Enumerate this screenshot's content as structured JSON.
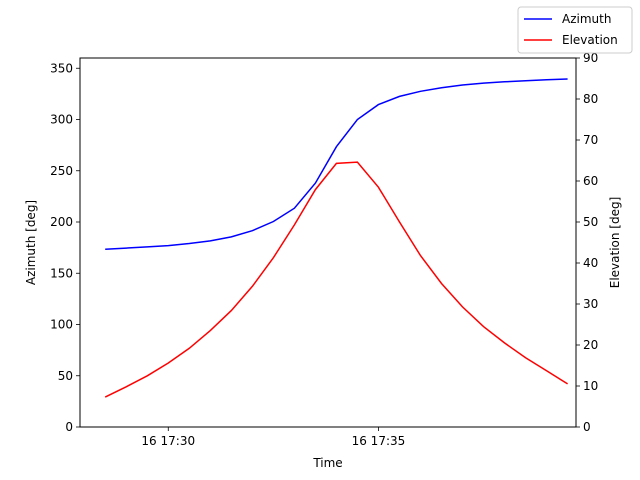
{
  "chart_data": {
    "type": "line",
    "xlabel": "Time",
    "ylabel_left": "Azimuth [deg]",
    "ylabel_right": "Elevation [deg]",
    "x_ticks": [
      "16 17:30",
      "16 17:35"
    ],
    "x_tick_minutes": [
      30,
      35
    ],
    "xlim_minutes": [
      27.9,
      39.7
    ],
    "ylim_left": [
      0,
      360
    ],
    "ylim_right": [
      0,
      90
    ],
    "yticks_left": [
      0,
      50,
      100,
      150,
      200,
      250,
      300,
      350
    ],
    "yticks_right": [
      0,
      10,
      20,
      30,
      40,
      50,
      60,
      70,
      80,
      90
    ],
    "grid": false,
    "legend_position": "top-right",
    "x_minutes": [
      28.5,
      29.0,
      29.5,
      30.0,
      30.5,
      31.0,
      31.5,
      32.0,
      32.5,
      33.0,
      33.5,
      34.0,
      34.5,
      35.0,
      35.5,
      36.0,
      36.5,
      37.0,
      37.5,
      38.0,
      38.5,
      39.0,
      39.5
    ],
    "series": [
      {
        "name": "Azimuth",
        "axis": "left",
        "color": "#0000ff",
        "values": [
          173.5,
          174.5,
          175.7,
          177.0,
          179.0,
          181.6,
          185.5,
          191.5,
          200.5,
          213.5,
          238.0,
          273.5,
          300.0,
          314.5,
          322.5,
          327.5,
          331.0,
          333.7,
          335.5,
          336.8,
          337.8,
          338.7,
          339.5
        ]
      },
      {
        "name": "Elevation",
        "axis": "right",
        "color": "#ff0000",
        "values": [
          7.3,
          9.8,
          12.5,
          15.6,
          19.2,
          23.5,
          28.4,
          34.3,
          41.3,
          49.3,
          57.9,
          64.3,
          64.6,
          58.5,
          50.0,
          41.8,
          35.0,
          29.3,
          24.5,
          20.5,
          16.9,
          13.7,
          10.5
        ]
      }
    ]
  }
}
